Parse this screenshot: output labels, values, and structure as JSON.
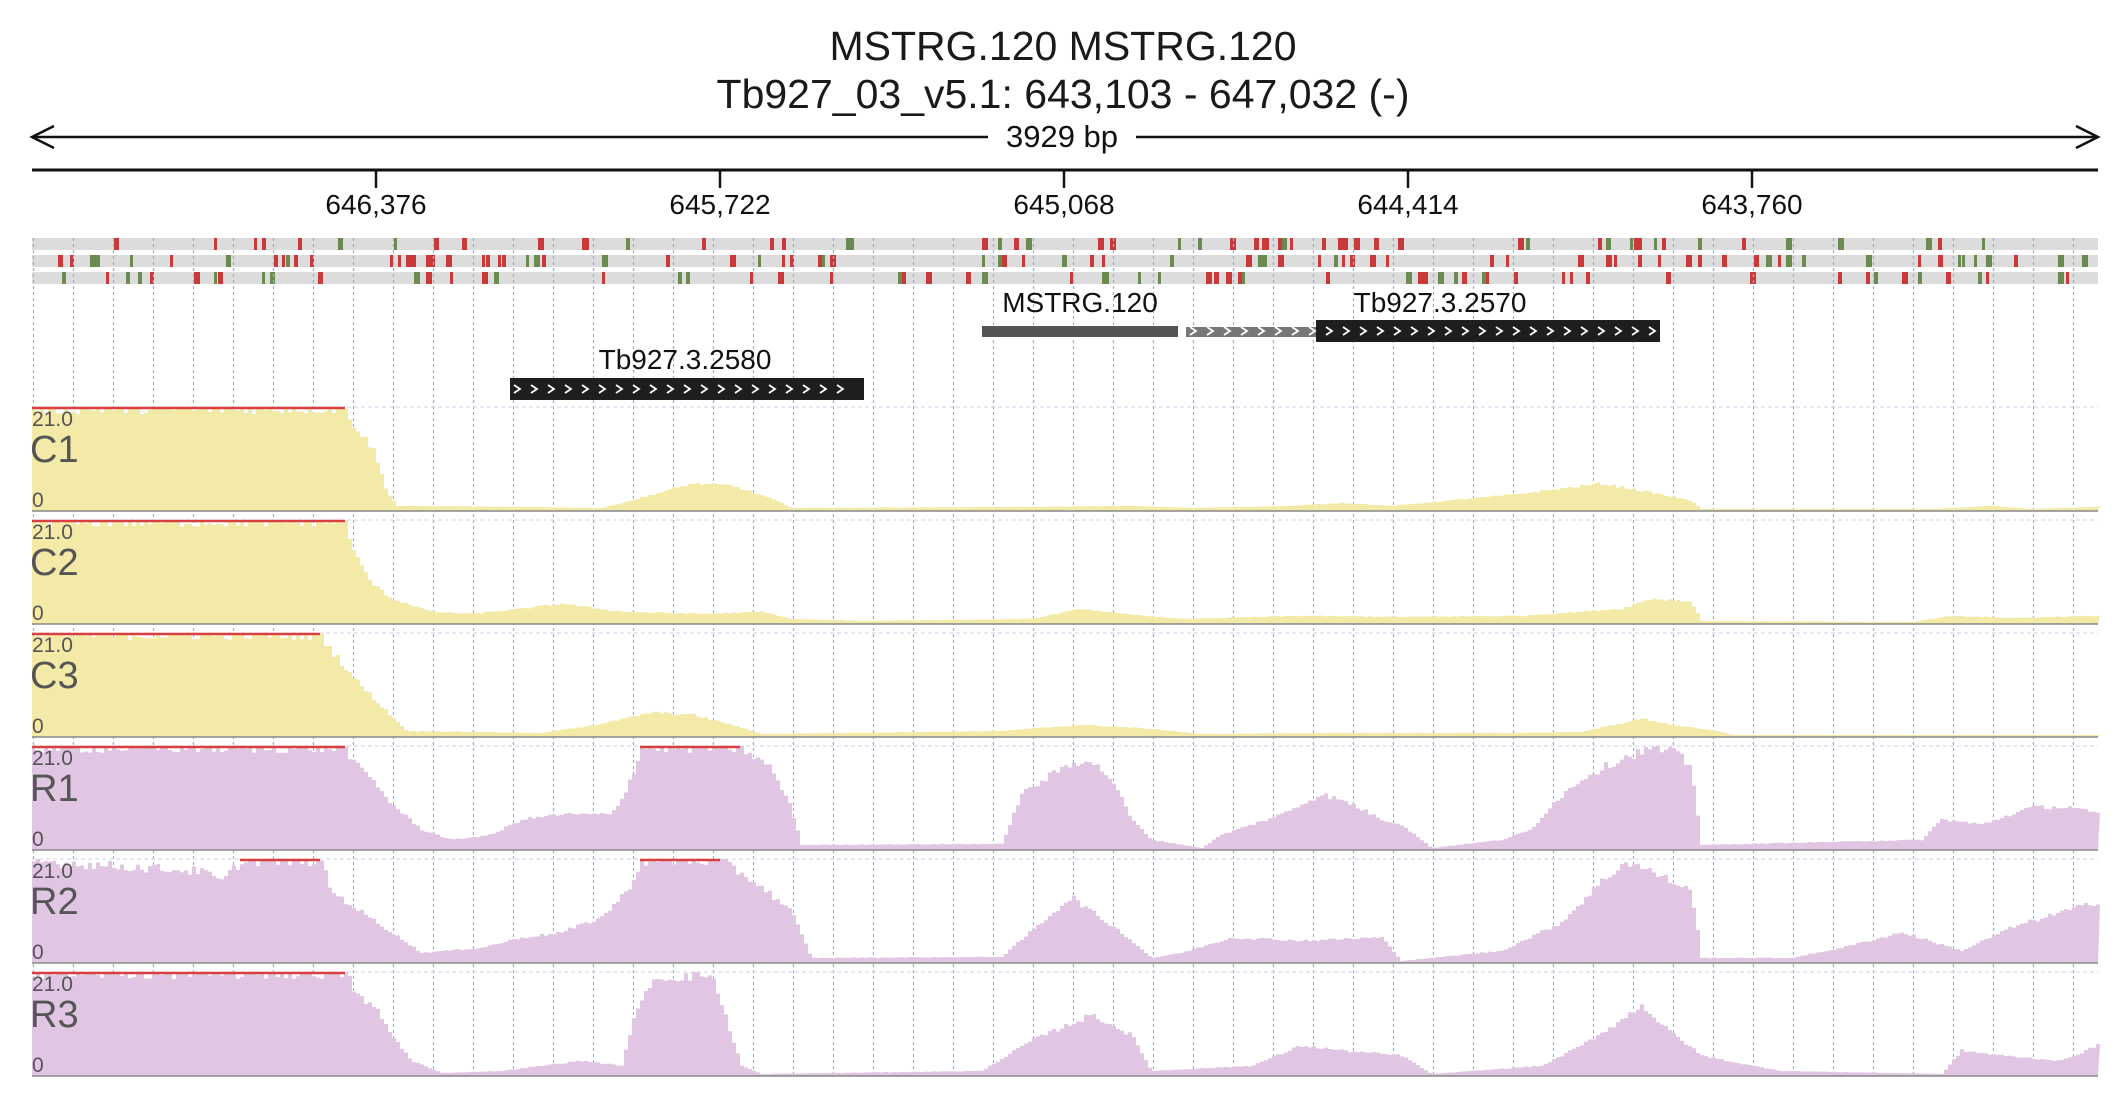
{
  "header": {
    "title": "MSTRG.120  MSTRG.120",
    "locus": "Tb927_03_v5.1: 643,103 - 647,032 (-)"
  },
  "ruler": {
    "span_label": "3929 bp",
    "ticks": [
      "646,376",
      "645,722",
      "645,068",
      "644,414",
      "643,760"
    ]
  },
  "genes": [
    {
      "name": "MSTRG.120",
      "strand": "none"
    },
    {
      "name": "Tb927.3.2570",
      "strand": "+"
    },
    {
      "name": "Tb927.3.2580",
      "strand": "+"
    }
  ],
  "tracks": [
    {
      "name": "C1",
      "scale_max": "21.0",
      "scale_min": "0",
      "color": "#f3eaa8",
      "clip_color": "#d84040"
    },
    {
      "name": "C2",
      "scale_max": "21.0",
      "scale_min": "0",
      "color": "#f3eaa8",
      "clip_color": "#d84040"
    },
    {
      "name": "C3",
      "scale_max": "21.0",
      "scale_min": "0",
      "color": "#f3eaa8",
      "clip_color": "#d84040"
    },
    {
      "name": "R1",
      "scale_max": "21.0",
      "scale_min": "0",
      "color": "#e0c6e2",
      "clip_color": "#d84040"
    },
    {
      "name": "R2",
      "scale_max": "21.0",
      "scale_min": "0",
      "color": "#e0c6e2",
      "clip_color": "#d84040"
    },
    {
      "name": "R3",
      "scale_max": "21.0",
      "scale_min": "0",
      "color": "#e0c6e2",
      "clip_color": "#d84040"
    }
  ],
  "colors": {
    "gene_block": "#1e1e1e",
    "transcript_bar": "#555555",
    "grid_line": "#8ab4e8",
    "variant_red": "#c83a3a",
    "variant_green": "#6a8a50",
    "variant_bg": "#dcdcdc",
    "track_label": "#555555"
  }
}
